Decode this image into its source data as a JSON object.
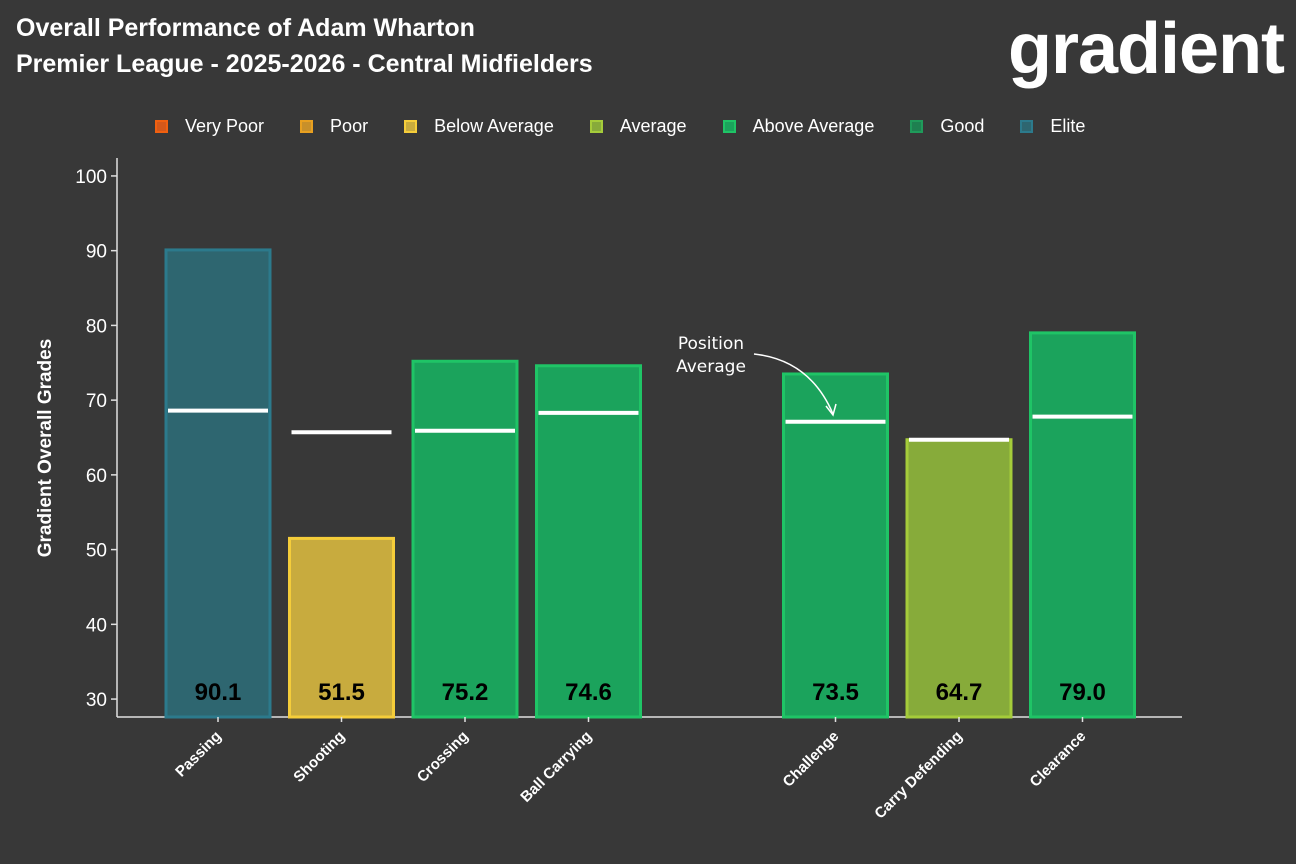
{
  "header": {
    "title_line1": "Overall Performance of Adam Wharton",
    "title_line2": "Premier League - 2025-2026 - Central Midfielders",
    "logo_text": "gradient"
  },
  "legend": [
    {
      "label": "Very Poor",
      "fill": "#d4581a",
      "border": "#f06010"
    },
    {
      "label": "Poor",
      "fill": "#c8902a",
      "border": "#e8a020"
    },
    {
      "label": "Below Average",
      "fill": "#c8ab3e",
      "border": "#f5cd3a"
    },
    {
      "label": "Average",
      "fill": "#87ab3a",
      "border": "#a5cc3a"
    },
    {
      "label": "Above Average",
      "fill": "#1ba35c",
      "border": "#1fc466"
    },
    {
      "label": "Good",
      "fill": "#1e8050",
      "border": "#1f9a5a"
    },
    {
      "label": "Elite",
      "fill": "#2e6670",
      "border": "#2c7a8c"
    }
  ],
  "chart_data": {
    "type": "bar",
    "title": "",
    "xlabel": "",
    "ylabel": "Gradient Overall Grades",
    "ylim": [
      27.6,
      102.4
    ],
    "yticks": [
      30,
      40,
      50,
      60,
      70,
      80,
      90,
      100
    ],
    "grid": false,
    "legend_placement": "top",
    "categories": [
      "Passing",
      "Shooting",
      "Crossing",
      "Ball Carrying",
      "",
      "Challenge",
      "Carry Defending",
      "Clearance"
    ],
    "values": [
      90.1,
      51.5,
      75.2,
      74.6,
      null,
      73.5,
      64.7,
      79.0
    ],
    "value_labels": [
      "90.1",
      "51.5",
      "75.2",
      "74.6",
      "",
      "73.5",
      "64.7",
      "79.0"
    ],
    "position_average": [
      68.6,
      65.7,
      65.9,
      68.3,
      null,
      67.1,
      64.7,
      67.8
    ],
    "ratings": [
      "Elite",
      "Below Average",
      "Above Average",
      "Above Average",
      "",
      "Above Average",
      "Average",
      "Above Average"
    ],
    "annotation": {
      "line1": "Position",
      "line2": "Average",
      "target": "Challenge"
    }
  }
}
